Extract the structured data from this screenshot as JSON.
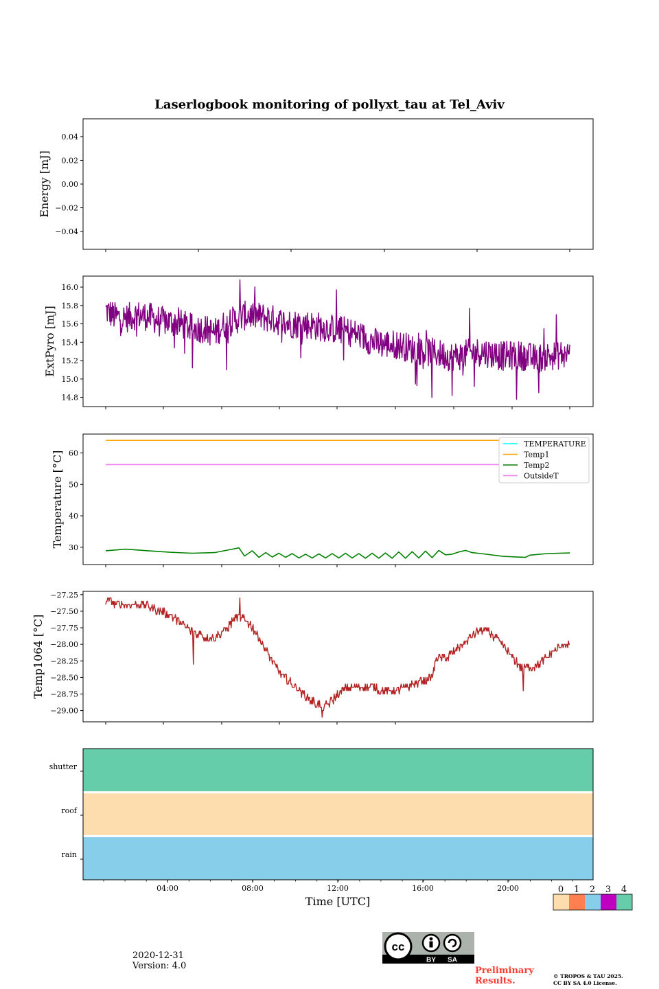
{
  "figure": {
    "title": "Laserlogbook monitoring of pollyxt_tau at Tel_Aviv",
    "xlabel": "Time [UTC]",
    "date": "2020-12-31",
    "version": "Version: 4.0",
    "preliminary": [
      "Preliminary",
      "Results."
    ],
    "copyright": [
      "© TROPOS & TAU 2025.",
      "CC BY SA 4.0 License."
    ],
    "license_badge": {
      "icon": "cc-by-sa-icon",
      "labels": [
        "BY",
        "SA"
      ],
      "mark": "cc"
    }
  },
  "colorbar": {
    "ticks": [
      "0",
      "1",
      "2",
      "3",
      "4"
    ],
    "colors": [
      "#FDDDAE",
      "#FF7F50",
      "#87CEEB",
      "#C000C0",
      "#66CDAA"
    ]
  },
  "chart_data": [
    {
      "type": "line",
      "ylabel": "Energy [mJ]",
      "xlim": [
        0,
        24
      ],
      "ylim": [
        -0.055,
        0.055
      ],
      "yticks": [
        "0.04",
        "0.02",
        "0.00",
        "−0.02",
        "−0.04"
      ],
      "series": []
    },
    {
      "type": "line",
      "ylabel": "ExtPyro [mJ]",
      "xlim": [
        0,
        24
      ],
      "ylim": [
        14.7,
        16.12
      ],
      "yticks": [
        "16.0",
        "15.8",
        "15.6",
        "15.4",
        "15.2",
        "15.0",
        "14.8"
      ],
      "series": [
        {
          "color": "#800080",
          "x": [
            1.1,
            1.5,
            2.0,
            2.5,
            3.0,
            3.5,
            4.0,
            4.5,
            5.0,
            5.5,
            6.0,
            6.5,
            7.0,
            7.5,
            8.0,
            8.5,
            9.0,
            9.5,
            10.0,
            10.5,
            11.0,
            11.5,
            12.0,
            12.5,
            13.0,
            13.5,
            14.0,
            14.5,
            15.0,
            15.5,
            16.0,
            16.5,
            17.0,
            17.5,
            18.0,
            18.5,
            19.0,
            19.5,
            20.0,
            20.5,
            21.0,
            21.5,
            22.0
          ],
          "y": [
            15.75,
            15.68,
            15.66,
            15.7,
            15.68,
            15.64,
            15.62,
            15.6,
            15.55,
            15.55,
            15.5,
            15.6,
            15.65,
            15.7,
            15.68,
            15.66,
            15.62,
            15.6,
            15.6,
            15.58,
            15.56,
            15.54,
            15.52,
            15.48,
            15.42,
            15.38,
            15.38,
            15.36,
            15.32,
            15.3,
            15.28,
            15.25,
            15.25,
            15.28,
            15.3,
            15.27,
            15.25,
            15.26,
            15.25,
            15.22,
            15.25,
            15.26,
            15.28
          ],
          "noise": 0.16,
          "outliers": [
            [
              7.15,
              16.08
            ],
            [
              5.0,
              15.12
            ],
            [
              6.55,
              15.1
            ],
            [
              11.5,
              15.97
            ],
            [
              15.8,
              14.8
            ],
            [
              17.5,
              15.77
            ],
            [
              19.6,
              14.78
            ],
            [
              16.7,
              14.82
            ],
            [
              21.4,
              15.7
            ],
            [
              20.6,
              14.85
            ]
          ]
        }
      ]
    },
    {
      "type": "line",
      "ylabel": "Temperature [°C]",
      "xlim": [
        0,
        24
      ],
      "ylim": [
        24.5,
        66.0
      ],
      "yticks": [
        "60",
        "50",
        "40",
        "30"
      ],
      "legend": [
        "TEMPERATURE",
        "Temp1",
        "Temp2",
        "OutsideT"
      ],
      "legend_loc": "upper right",
      "series": [
        {
          "name": "TEMPERATURE",
          "color": "#00FFFF",
          "x": [],
          "y": []
        },
        {
          "name": "Temp1",
          "color": "#FFA500",
          "x": [
            1.1,
            22.0
          ],
          "y": [
            64.0,
            64.0
          ]
        },
        {
          "name": "Temp2",
          "color": "#008000",
          "x": [
            1.1,
            2.0,
            3.0,
            4.0,
            5.0,
            6.0,
            6.8,
            7.1,
            7.35,
            7.7,
            8.0,
            8.3,
            8.6,
            8.9,
            9.2,
            9.5,
            9.8,
            10.1,
            10.4,
            10.7,
            11.0,
            11.3,
            11.6,
            11.9,
            12.2,
            12.5,
            12.8,
            13.1,
            13.4,
            13.7,
            14.0,
            14.3,
            14.6,
            14.9,
            15.2,
            15.5,
            15.8,
            16.1,
            16.4,
            16.7,
            17.0,
            17.3,
            17.6,
            18.0,
            19.0,
            20.0,
            20.2,
            21.0,
            22.0
          ],
          "y": [
            28.9,
            29.4,
            28.9,
            28.4,
            28.1,
            28.3,
            29.4,
            29.8,
            27.2,
            28.9,
            26.8,
            28.3,
            26.9,
            28.1,
            26.8,
            28.0,
            26.6,
            27.8,
            26.6,
            27.9,
            26.6,
            28.0,
            26.6,
            28.1,
            26.6,
            28.0,
            26.5,
            28.1,
            26.5,
            28.2,
            26.5,
            28.5,
            26.5,
            28.6,
            26.6,
            28.8,
            26.7,
            29.0,
            27.6,
            27.8,
            28.5,
            29.0,
            28.3,
            28.0,
            27.1,
            26.8,
            27.5,
            28.0,
            28.2
          ]
        },
        {
          "name": "OutsideT",
          "color": "#EE82EE",
          "x": [
            1.1,
            22.0
          ],
          "y": [
            56.3,
            56.3
          ]
        }
      ]
    },
    {
      "type": "line",
      "ylabel": "Temp1064 [°C]",
      "xlim": [
        0,
        24
      ],
      "ylim": [
        -29.17,
        -27.2
      ],
      "yticks": [
        "−27.25",
        "−27.50",
        "−27.75",
        "−28.00",
        "−28.25",
        "−28.50",
        "−28.75",
        "−29.00"
      ],
      "series": [
        {
          "color": "#B22222",
          "x": [
            1.1,
            2.0,
            3.0,
            3.5,
            4.0,
            4.5,
            5.0,
            5.5,
            6.0,
            6.5,
            7.0,
            7.3,
            7.6,
            8.0,
            8.5,
            9.0,
            9.5,
            10.0,
            10.5,
            10.9,
            11.3,
            11.7,
            12.0,
            13.0,
            14.0,
            15.0,
            15.8,
            16.0,
            16.5,
            17.0,
            17.5,
            18.0,
            18.3,
            18.8,
            19.3,
            19.8,
            20.3,
            20.8,
            21.3,
            21.8,
            22.0
          ],
          "y": [
            -27.35,
            -27.42,
            -27.42,
            -27.5,
            -27.55,
            -27.68,
            -27.8,
            -27.88,
            -27.9,
            -27.78,
            -27.58,
            -27.6,
            -27.7,
            -27.9,
            -28.2,
            -28.45,
            -28.6,
            -28.75,
            -28.88,
            -28.95,
            -28.85,
            -28.72,
            -28.65,
            -28.65,
            -28.72,
            -28.6,
            -28.5,
            -28.2,
            -28.2,
            -28.05,
            -27.9,
            -27.78,
            -27.8,
            -27.95,
            -28.15,
            -28.35,
            -28.35,
            -28.25,
            -28.1,
            -28.0,
            -28.0
          ],
          "noise": 0.06,
          "outliers": [
            [
              7.15,
              -27.3
            ],
            [
              5.05,
              -28.3
            ],
            [
              19.9,
              -28.7
            ],
            [
              10.85,
              -29.1
            ]
          ]
        }
      ]
    },
    {
      "type": "heatmap",
      "categories": [
        "shutter",
        "roof",
        "rain"
      ],
      "status_values": [
        4,
        0,
        2
      ],
      "xticks": [
        "04:00",
        "08:00",
        "12:00",
        "16:00",
        "20:00"
      ]
    }
  ]
}
